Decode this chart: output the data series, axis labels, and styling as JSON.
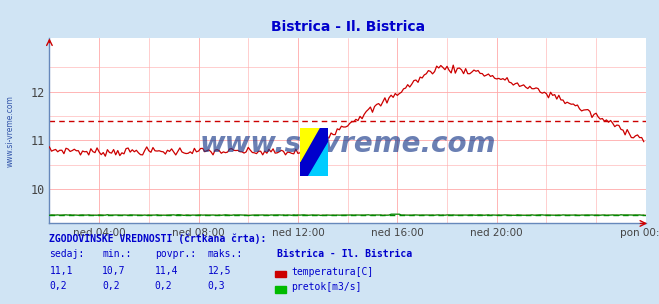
{
  "title": "Bistrica - Il. Bistrica",
  "title_color": "#0000cc",
  "bg_color": "#d0e4f4",
  "plot_bg_color": "#ffffff",
  "fig_size": [
    6.59,
    3.04
  ],
  "dpi": 100,
  "xlim": [
    0,
    288
  ],
  "ylim_temp": [
    9.3,
    13.1
  ],
  "x_ticks": [
    24,
    72,
    120,
    168,
    216,
    288
  ],
  "x_tick_labels": [
    "ned 04:00",
    "ned 08:00",
    "ned 12:00",
    "ned 16:00",
    "ned 20:00",
    "pon 00:00"
  ],
  "y_ticks_temp": [
    10,
    11,
    12
  ],
  "temp_color": "#cc0000",
  "flow_color": "#008800",
  "avg_temp": 11.4,
  "avg_flow": 0.2,
  "watermark": "www.si-vreme.com",
  "watermark_color": "#1a3a8a",
  "left_label": "www.si-vreme.com",
  "left_label_color": "#3355aa",
  "grid_color": "#ffaaaa",
  "footer_text1": "ZGODOVINSKE VREDNOSTI (črtkana črta):",
  "footer_col1_header": "sedaj:",
  "footer_col2_header": "min.:",
  "footer_col3_header": "povpr.:",
  "footer_col4_header": "maks.:",
  "footer_col5_header": "Bistrica - Il. Bistrica",
  "footer_temp_row": [
    "11,1",
    "10,7",
    "11,4",
    "12,5"
  ],
  "footer_flow_row": [
    "0,2",
    "0,2",
    "0,2",
    "0,3"
  ],
  "footer_label_temp": "temperatura[C]",
  "footer_label_flow": "pretok[m3/s]",
  "footer_color": "#0000cc",
  "temp_swatch_color": "#cc0000",
  "flow_swatch_color": "#00bb00",
  "logo_blue": "#0000cc",
  "logo_yellow": "#ffff00",
  "logo_cyan": "#00ccff"
}
